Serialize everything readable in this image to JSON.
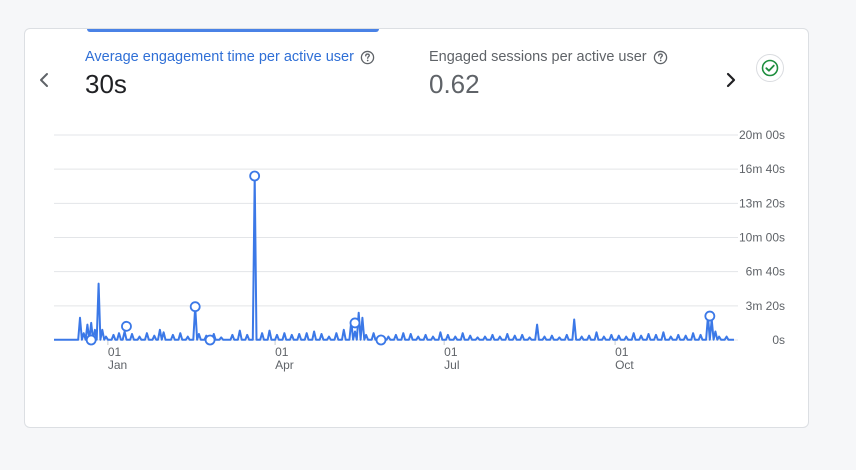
{
  "metrics": [
    {
      "label": "Average engagement time per active user",
      "value": "30s",
      "active": true
    },
    {
      "label": "Engaged sessions per active user",
      "value": "0.62",
      "active": false
    }
  ],
  "icons": {
    "prev": "chevron-left-icon",
    "next": "chevron-right-icon",
    "help": "help-circle-icon",
    "status": "check-circle-icon"
  },
  "colors": {
    "accent": "#4a82e6",
    "status": "#1e8e3e"
  },
  "chart_data": {
    "type": "line",
    "y_tick_labels": [
      "0s",
      "3m 20s",
      "6m 40s",
      "10m 00s",
      "13m 20s",
      "16m 40s",
      "20m 00s"
    ],
    "y_tick_values": [
      0,
      200,
      400,
      600,
      800,
      1000,
      1200
    ],
    "ylim": [
      0,
      1200
    ],
    "grid": true,
    "x_tick_labels": [
      {
        "day": "01",
        "month": "Jan",
        "index": 29
      },
      {
        "day": "01",
        "month": "Apr",
        "index": 119
      },
      {
        "day": "01",
        "month": "Jul",
        "index": 210
      },
      {
        "day": "01",
        "month": "Oct",
        "index": 302
      }
    ],
    "x_range": [
      0,
      366
    ],
    "baseline": 2,
    "spikes": [
      [
        14,
        130
      ],
      [
        16,
        40
      ],
      [
        18,
        90
      ],
      [
        20,
        100
      ],
      [
        22,
        60
      ],
      [
        24,
        330
      ],
      [
        26,
        60
      ],
      [
        28,
        20
      ],
      [
        32,
        30
      ],
      [
        35,
        40
      ],
      [
        38,
        50
      ],
      [
        42,
        35
      ],
      [
        46,
        20
      ],
      [
        50,
        40
      ],
      [
        54,
        25
      ],
      [
        57,
        60
      ],
      [
        59,
        45
      ],
      [
        64,
        30
      ],
      [
        68,
        40
      ],
      [
        72,
        20
      ],
      [
        76,
        195
      ],
      [
        78,
        35
      ],
      [
        82,
        25
      ],
      [
        86,
        35
      ],
      [
        90,
        15
      ],
      [
        96,
        30
      ],
      [
        100,
        55
      ],
      [
        104,
        30
      ],
      [
        108,
        960
      ],
      [
        112,
        40
      ],
      [
        116,
        55
      ],
      [
        120,
        30
      ],
      [
        124,
        40
      ],
      [
        128,
        30
      ],
      [
        132,
        35
      ],
      [
        136,
        40
      ],
      [
        140,
        50
      ],
      [
        144,
        35
      ],
      [
        148,
        20
      ],
      [
        152,
        40
      ],
      [
        156,
        60
      ],
      [
        160,
        110
      ],
      [
        162,
        50
      ],
      [
        164,
        160
      ],
      [
        166,
        130
      ],
      [
        168,
        30
      ],
      [
        172,
        40
      ],
      [
        176,
        25
      ],
      [
        180,
        20
      ],
      [
        184,
        30
      ],
      [
        188,
        40
      ],
      [
        192,
        35
      ],
      [
        196,
        20
      ],
      [
        200,
        30
      ],
      [
        204,
        20
      ],
      [
        208,
        45
      ],
      [
        212,
        30
      ],
      [
        216,
        20
      ],
      [
        220,
        40
      ],
      [
        224,
        25
      ],
      [
        228,
        15
      ],
      [
        232,
        20
      ],
      [
        236,
        30
      ],
      [
        240,
        20
      ],
      [
        244,
        35
      ],
      [
        248,
        25
      ],
      [
        252,
        30
      ],
      [
        256,
        15
      ],
      [
        260,
        90
      ],
      [
        264,
        20
      ],
      [
        268,
        25
      ],
      [
        272,
        15
      ],
      [
        276,
        30
      ],
      [
        280,
        120
      ],
      [
        284,
        20
      ],
      [
        288,
        25
      ],
      [
        292,
        45
      ],
      [
        296,
        20
      ],
      [
        300,
        30
      ],
      [
        304,
        25
      ],
      [
        308,
        20
      ],
      [
        312,
        40
      ],
      [
        316,
        25
      ],
      [
        320,
        35
      ],
      [
        324,
        30
      ],
      [
        328,
        45
      ],
      [
        332,
        20
      ],
      [
        336,
        30
      ],
      [
        340,
        25
      ],
      [
        344,
        40
      ],
      [
        348,
        30
      ],
      [
        352,
        140
      ],
      [
        354,
        120
      ],
      [
        356,
        50
      ],
      [
        358,
        20
      ],
      [
        362,
        20
      ]
    ],
    "markers": [
      {
        "index": 20,
        "value": 0
      },
      {
        "index": 39,
        "value": 80
      },
      {
        "index": 76,
        "value": 195
      },
      {
        "index": 84,
        "value": 0
      },
      {
        "index": 108,
        "value": 960
      },
      {
        "index": 162,
        "value": 100
      },
      {
        "index": 176,
        "value": 0
      },
      {
        "index": 353,
        "value": 140
      }
    ]
  }
}
